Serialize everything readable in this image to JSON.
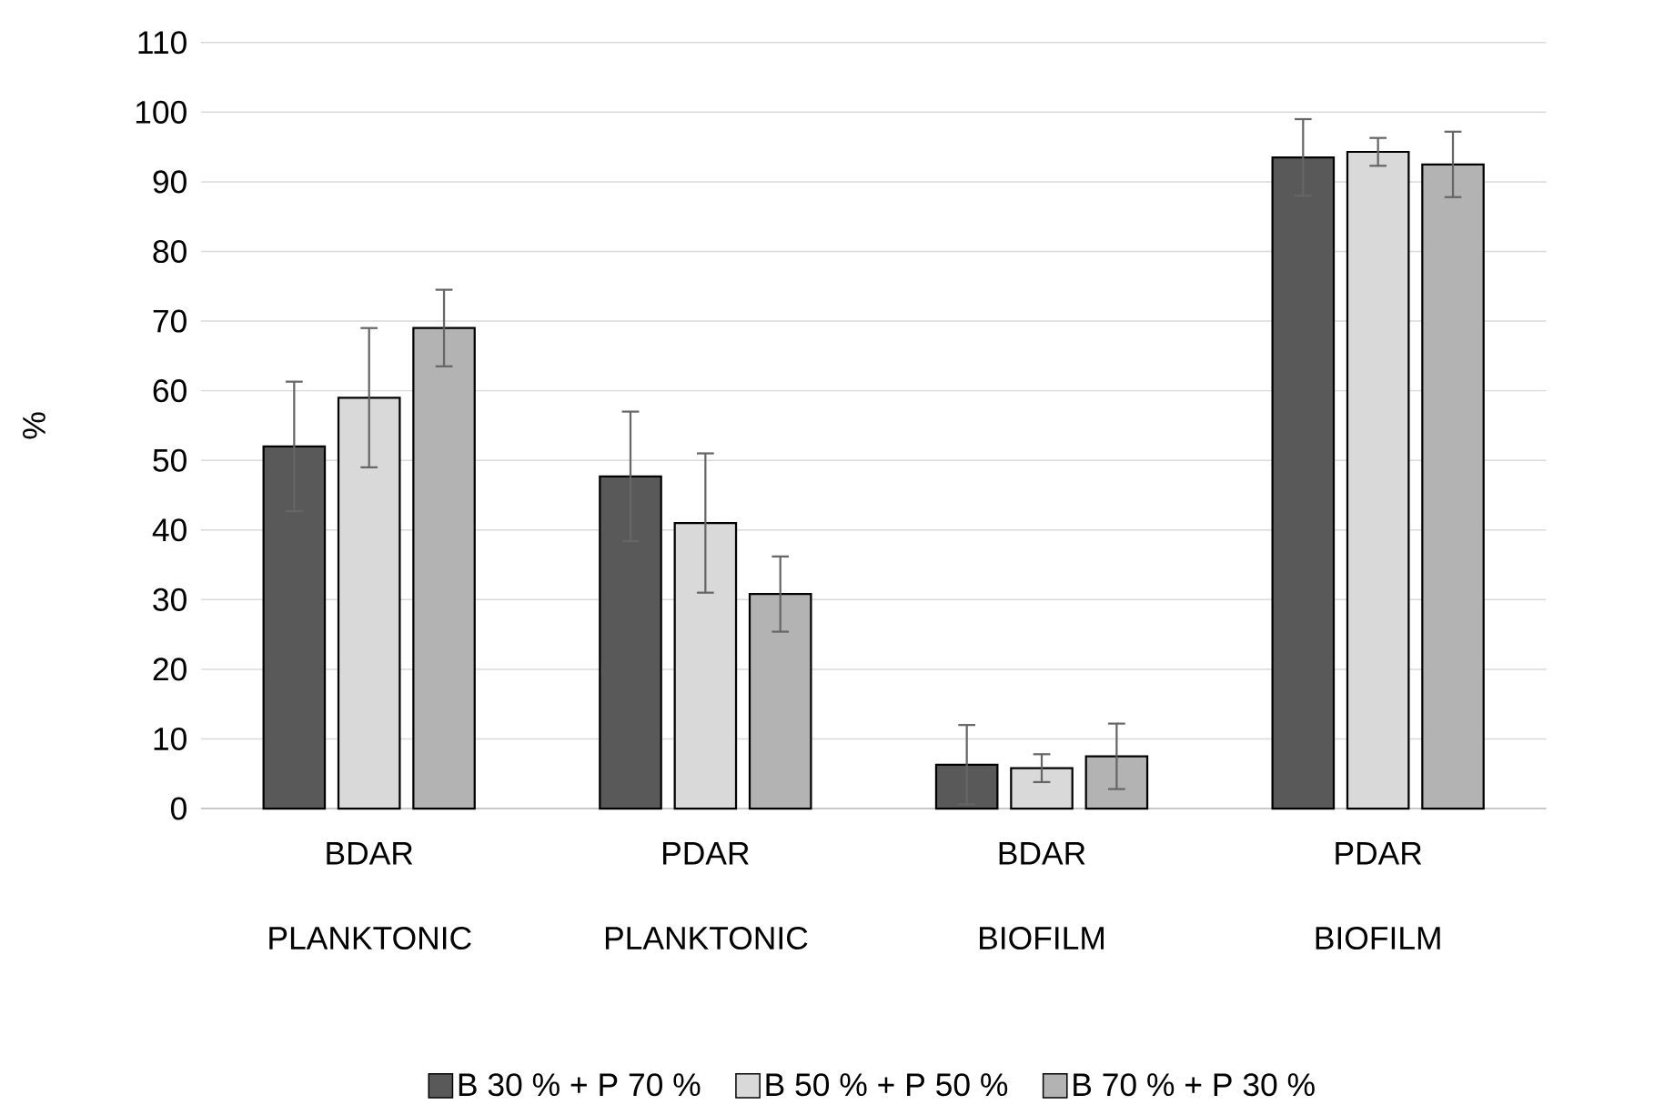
{
  "chart_data": {
    "type": "bar",
    "ylabel": "%",
    "categories": [
      "BDAR PLANKTONIC",
      "PDAR PLANKTONIC",
      "BDAR BIOFILM",
      "PDAR BIOFILM"
    ],
    "series": [
      {
        "name": "B 30 % + P 70 %",
        "color": "#595959",
        "values": [
          52,
          47.7,
          6.3,
          93.5
        ],
        "errors": [
          9.3,
          9.3,
          5.7,
          5.5
        ]
      },
      {
        "name": "B 50 % + P 50 %",
        "color": "#d9d9d9",
        "values": [
          59,
          41,
          5.8,
          94.3
        ],
        "errors": [
          10,
          10,
          2,
          2
        ]
      },
      {
        "name": "B 70 % + P 30 %",
        "color": "#b3b3b3",
        "values": [
          69,
          30.8,
          7.5,
          92.5
        ],
        "errors": [
          5.5,
          5.4,
          4.7,
          4.7
        ]
      }
    ],
    "ylim": [
      0,
      110
    ],
    "yticks": [
      0,
      10,
      20,
      30,
      40,
      50,
      60,
      70,
      80,
      90,
      100,
      110
    ],
    "grid": "y",
    "legend": "bottom"
  }
}
